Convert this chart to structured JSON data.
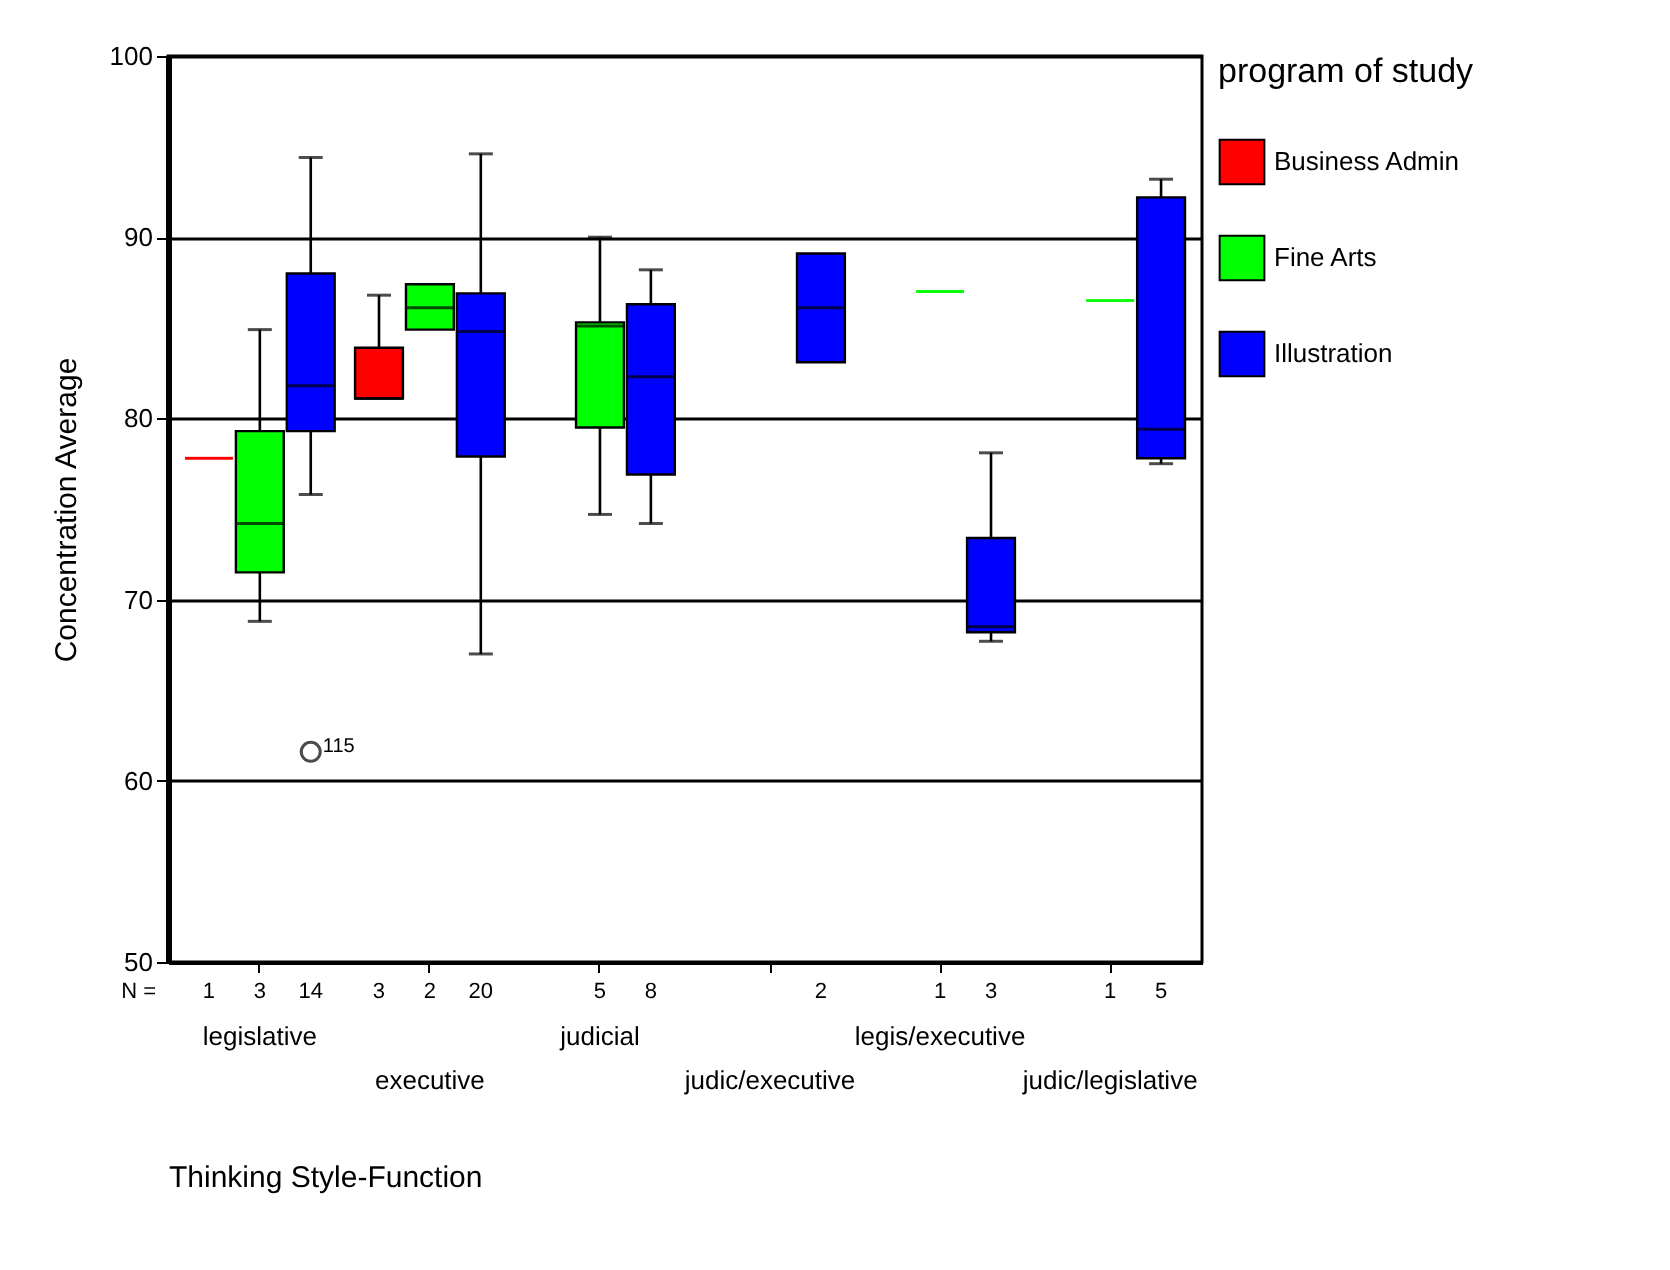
{
  "chart_data": {
    "type": "box",
    "xlabel": "Thinking Style-Function",
    "ylabel": "Concentration Average",
    "legend_title": "program of study",
    "categories": [
      "legislative",
      "executive",
      "judicial",
      "judic/executive",
      "legis/executive",
      "judic/legislative"
    ],
    "ylim": [
      50,
      100
    ],
    "yticks": [
      50,
      60,
      70,
      80,
      90,
      100
    ],
    "grid": "y",
    "legend": "right",
    "annotations": [
      "N =",
      "115"
    ],
    "series": [
      {
        "name": "Business Admin",
        "color": "#ff0000",
        "value_labels": [
          "1",
          "3",
          null,
          null,
          null,
          null
        ],
        "boxes": [
          {
            "low": 77.8,
            "q1": 77.8,
            "median": 77.8,
            "q3": 77.8,
            "high": 77.8
          },
          {
            "low": 81.1,
            "q1": 81.1,
            "median": 81.1,
            "q3": 83.9,
            "high": 86.8
          },
          null,
          null,
          null,
          null
        ]
      },
      {
        "name": "Fine Arts",
        "color": "#00ff00",
        "value_labels": [
          "3",
          "2",
          "5",
          null,
          "1",
          "1"
        ],
        "boxes": [
          {
            "low": 68.8,
            "q1": 71.5,
            "median": 74.2,
            "q3": 79.3,
            "high": 84.9
          },
          {
            "low": 84.9,
            "q1": 84.9,
            "median": 86.1,
            "q3": 87.4,
            "high": 87.4
          },
          {
            "low": 74.7,
            "q1": 79.5,
            "median": 85.1,
            "q3": 85.3,
            "high": 90.0
          },
          null,
          {
            "low": 87.0,
            "q1": 87.0,
            "median": 87.0,
            "q3": 87.0,
            "high": 87.0
          },
          {
            "low": 86.5,
            "q1": 86.5,
            "median": 86.5,
            "q3": 86.5,
            "high": 86.5
          }
        ]
      },
      {
        "name": "Illustration",
        "color": "#0000ff",
        "value_labels": [
          "14",
          "20",
          "8",
          "2",
          "3",
          "5"
        ],
        "boxes": [
          {
            "low": 75.8,
            "q1": 79.3,
            "median": 81.8,
            "q3": 88.0,
            "high": 94.4,
            "outliers": [
              61.6
            ]
          },
          {
            "low": 67.0,
            "q1": 77.9,
            "median": 84.8,
            "q3": 86.9,
            "high": 94.6
          },
          {
            "low": 74.2,
            "q1": 76.9,
            "median": 82.3,
            "q3": 86.3,
            "high": 88.2
          },
          {
            "low": 83.1,
            "q1": 83.1,
            "median": 86.1,
            "q3": 89.1,
            "high": 89.1
          },
          {
            "low": 67.7,
            "q1": 68.2,
            "median": 68.5,
            "q3": 73.4,
            "high": 78.1
          },
          {
            "low": 77.5,
            "q1": 77.8,
            "median": 79.4,
            "q3": 92.2,
            "high": 93.2
          }
        ]
      }
    ]
  }
}
